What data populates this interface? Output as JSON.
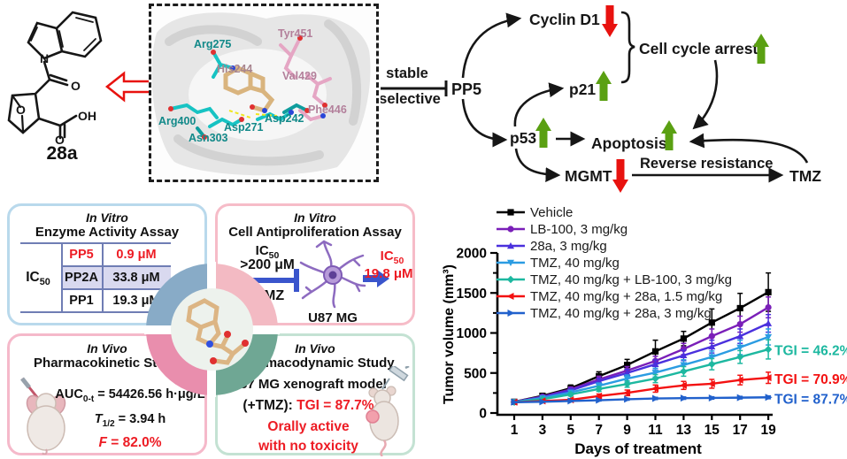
{
  "compound": {
    "label": "28a"
  },
  "binding_panel": {
    "residues": [
      {
        "name": "Arg275",
        "color": "#128989"
      },
      {
        "name": "Tyr451",
        "color": "#b3809b"
      },
      {
        "name": "His244",
        "color": "#a8858f"
      },
      {
        "name": "Val429",
        "color": "#b3809b"
      },
      {
        "name": "Phe446",
        "color": "#b3809b"
      },
      {
        "name": "Asp242",
        "color": "#128989"
      },
      {
        "name": "Asp271",
        "color": "#128989"
      },
      {
        "name": "Arg400",
        "color": "#128989"
      },
      {
        "name": "Asn303",
        "color": "#128989"
      }
    ]
  },
  "pathway": {
    "stable": "stable",
    "selective": "selective",
    "pp5": "PP5",
    "cyclin_d1": "Cyclin D1",
    "p21": "p21",
    "p53": "p53",
    "cell_cycle_arrest": "Cell cycle arrest",
    "apoptosis": "Apoptosis",
    "mgmt": "MGMT",
    "reverse_resistance": "Reverse resistance",
    "tmz": "TMZ"
  },
  "panels": {
    "enzyme_assay": {
      "title_line1": "In Vitro",
      "title_line2": "Enzyme Activity Assay",
      "label_base": "IC",
      "label_sub": "50",
      "rows": [
        {
          "enzyme": "PP5",
          "value": "0.9 μM"
        },
        {
          "enzyme": "PP2A",
          "value": "33.8 μM"
        },
        {
          "enzyme": "PP1",
          "value": "19.3 μM"
        }
      ]
    },
    "cell_assay": {
      "title_line1": "In Vitro",
      "title_line2": "Cell Antiproliferation Assay",
      "ic50_base": "IC",
      "ic50_sub": "50",
      "before_value": ">200 μM",
      "plus_tmz": "+TMZ",
      "cell_line": "U87 MG",
      "after_base": "IC",
      "after_sub": "50",
      "after_value": "19.8 μM"
    },
    "pk_study": {
      "title_line1": "In Vivo",
      "title_line2": "Pharmacokinetic Study",
      "auc_base": "AUC",
      "auc_sub": "0-t",
      "auc_value": " = 54426.56 h·μg/L",
      "t_base": "T",
      "t_sub": "1/2",
      "t_value": " = 3.94 h",
      "f_base": "F",
      "f_value": " = 82.0%"
    },
    "pd_study": {
      "title_line1": "In Vivo",
      "title_line2": "Pharmacodynamic Study",
      "model": "U87 MG xenograft model",
      "tmz_prefix": "(+TMZ): ",
      "tgi_value": "TGI = 87.7%",
      "orally": "Orally active",
      "toxicity": "with no toxicity"
    }
  },
  "chart_data": {
    "type": "line",
    "xlabel": "Days of treatment",
    "ylabel": "Tumor volume (mm³)",
    "x": [
      1,
      3,
      5,
      7,
      9,
      11,
      13,
      15,
      17,
      19
    ],
    "ylim": [
      0,
      2000
    ],
    "yticks": [
      0,
      500,
      1000,
      1500,
      2000
    ],
    "yminor": [
      250,
      750,
      1250,
      1750
    ],
    "grid": false,
    "legend_position": "top-left-inside",
    "series": [
      {
        "name": "Vehicle",
        "color": "#000000",
        "marker": "square",
        "values": [
          140,
          215,
          310,
          460,
          600,
          770,
          930,
          1130,
          1310,
          1510
        ],
        "errors": [
          15,
          25,
          40,
          55,
          70,
          140,
          90,
          170,
          185,
          240
        ]
      },
      {
        "name": "LB-100, 3 mg/kg",
        "color": "#7a1fb8",
        "marker": "circle",
        "values": [
          140,
          205,
          295,
          420,
          530,
          650,
          800,
          960,
          1110,
          1320
        ],
        "errors": [
          12,
          20,
          30,
          40,
          50,
          60,
          70,
          90,
          100,
          130
        ]
      },
      {
        "name": "28a, 3 mg/kg",
        "color": "#4a30dd",
        "marker": "triangle-up",
        "values": [
          138,
          198,
          282,
          398,
          500,
          610,
          720,
          830,
          960,
          1120
        ],
        "errors": [
          10,
          18,
          25,
          35,
          45,
          55,
          65,
          80,
          90,
          110
        ]
      },
      {
        "name": "TMZ, 40 mg/kg",
        "color": "#2b9ce2",
        "marker": "triangle-down",
        "values": [
          138,
          188,
          258,
          340,
          430,
          505,
          600,
          700,
          820,
          950
        ],
        "errors": [
          10,
          15,
          25,
          35,
          45,
          55,
          65,
          75,
          90,
          100
        ]
      },
      {
        "name": "TMZ, 40 mg/kg + LB-100, 3 mg/kg",
        "color": "#1db8a0",
        "marker": "diamond",
        "values": [
          135,
          172,
          232,
          300,
          362,
          430,
          520,
          610,
          700,
          795
        ],
        "errors": [
          8,
          12,
          20,
          30,
          40,
          50,
          60,
          70,
          80,
          120
        ]
      },
      {
        "name": "TMZ, 40 mg/kg + 28a, 1.5 mg/kg",
        "color": "#f31111",
        "marker": "triangle-left",
        "values": [
          135,
          150,
          165,
          212,
          252,
          305,
          345,
          365,
          412,
          440
        ],
        "errors": [
          8,
          10,
          15,
          25,
          35,
          45,
          50,
          55,
          60,
          70
        ]
      },
      {
        "name": "TMZ, 40 mg/kg + 28a, 3 mg/kg",
        "color": "#2161cc",
        "marker": "triangle-right",
        "values": [
          135,
          140,
          150,
          160,
          172,
          182,
          186,
          188,
          192,
          196
        ],
        "errors": [
          5,
          6,
          8,
          10,
          12,
          14,
          15,
          15,
          16,
          18
        ]
      }
    ],
    "annotations": [
      {
        "text": "TGI = 46.2%",
        "color": "#1db8a0",
        "anchor_value": 790
      },
      {
        "text": "TGI = 70.9%",
        "color": "#f31111",
        "anchor_value": 430
      },
      {
        "text": "TGI = 87.7%",
        "color": "#2161cc",
        "anchor_value": 185
      }
    ]
  },
  "colors": {
    "red_text": "#ed1c24",
    "green_arrow": "#5aa012",
    "red_arrow": "#e8120f",
    "inhibit_blue": "#3a55cc"
  }
}
